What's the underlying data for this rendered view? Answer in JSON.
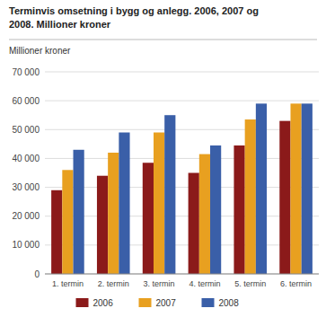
{
  "chart_data": {
    "type": "bar",
    "title": "Terminvis omsetning i bygg og anlegg. 2006, 2007 og",
    "subtitle": "2008. Millioner kroner",
    "ylabel": "Millioner kroner",
    "categories": [
      "1. termin",
      "2. termin",
      "3. termin",
      "4. termin",
      "5. termin",
      "6. termin"
    ],
    "series": [
      {
        "name": "2006",
        "color": "#8B1A1A",
        "values": [
          29000,
          34000,
          38500,
          35000,
          44500,
          53000
        ]
      },
      {
        "name": "2007",
        "color": "#E8A020",
        "values": [
          36000,
          42000,
          49000,
          41500,
          53500,
          59000
        ]
      },
      {
        "name": "2008",
        "color": "#3A5FA8",
        "values": [
          43000,
          49000,
          55000,
          44500,
          59000,
          59000
        ]
      }
    ],
    "ylim": [
      0,
      70000
    ],
    "yticks": [
      0,
      {
        "value": 10000,
        "label": "10 000"
      },
      {
        "value": 20000,
        "label": "20 000"
      },
      {
        "value": 30000,
        "label": "30 000"
      },
      {
        "value": 40000,
        "label": "40 000"
      },
      {
        "value": 50000,
        "label": "50 000"
      },
      {
        "value": 60000,
        "label": "60 000"
      },
      {
        "value": 70000,
        "label": "70 000"
      }
    ],
    "grid": true,
    "legend": "bottom"
  }
}
